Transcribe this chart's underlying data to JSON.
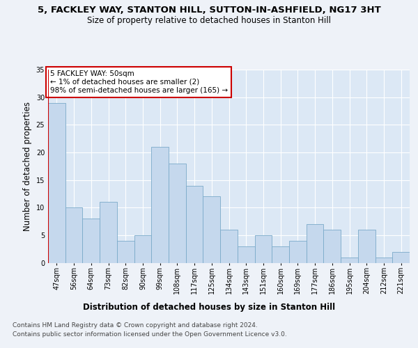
{
  "title_line1": "5, FACKLEY WAY, STANTON HILL, SUTTON-IN-ASHFIELD, NG17 3HT",
  "title_line2": "Size of property relative to detached houses in Stanton Hill",
  "xlabel": "Distribution of detached houses by size in Stanton Hill",
  "ylabel": "Number of detached properties",
  "categories": [
    "47sqm",
    "56sqm",
    "64sqm",
    "73sqm",
    "82sqm",
    "90sqm",
    "99sqm",
    "108sqm",
    "117sqm",
    "125sqm",
    "134sqm",
    "143sqm",
    "151sqm",
    "160sqm",
    "169sqm",
    "177sqm",
    "186sqm",
    "195sqm",
    "204sqm",
    "212sqm",
    "221sqm"
  ],
  "values": [
    29,
    10,
    8,
    11,
    4,
    5,
    21,
    18,
    14,
    12,
    6,
    3,
    5,
    3,
    4,
    7,
    6,
    1,
    6,
    1,
    2
  ],
  "bar_color": "#c5d8ed",
  "bar_edge_color": "#7aaac9",
  "highlight_line_color": "#cc0000",
  "annotation_text": "5 FACKLEY WAY: 50sqm\n← 1% of detached houses are smaller (2)\n98% of semi-detached houses are larger (165) →",
  "annotation_box_color": "#ffffff",
  "annotation_box_edge_color": "#cc0000",
  "ylim": [
    0,
    35
  ],
  "yticks": [
    0,
    5,
    10,
    15,
    20,
    25,
    30,
    35
  ],
  "footer_line1": "Contains HM Land Registry data © Crown copyright and database right 2024.",
  "footer_line2": "Contains public sector information licensed under the Open Government Licence v3.0.",
  "bg_color": "#eef2f8",
  "plot_bg_color": "#dce8f5",
  "grid_color": "#ffffff",
  "title_fontsize": 9.5,
  "subtitle_fontsize": 8.5,
  "axis_label_fontsize": 8.5,
  "tick_fontsize": 7,
  "annotation_fontsize": 7.5,
  "footer_fontsize": 6.5
}
